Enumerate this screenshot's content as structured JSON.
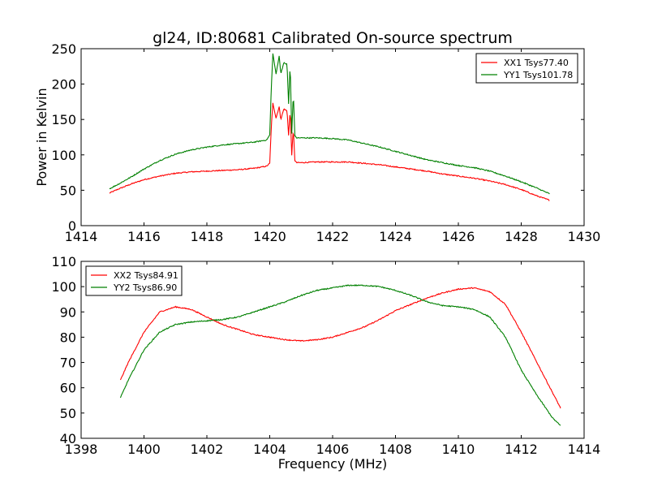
{
  "figure": {
    "title": "gl24, ID:80681 Calibrated On-source spectrum",
    "ylabel": "Power in Kelvin",
    "xlabel": "Frequency (MHz)"
  },
  "colors": {
    "xx": "#ff0000",
    "yy": "#008000",
    "axes": "#000000",
    "background": "#ffffff"
  },
  "chart_data": [
    {
      "type": "line",
      "title": "gl24, ID:80681 Calibrated On-source spectrum",
      "ylabel": "Power in Kelvin",
      "xlabel": "",
      "xlim": [
        1414,
        1430
      ],
      "ylim": [
        0,
        250
      ],
      "xticks": [
        1414,
        1416,
        1418,
        1420,
        1422,
        1424,
        1426,
        1428,
        1430
      ],
      "yticks": [
        0,
        50,
        100,
        150,
        200,
        250
      ],
      "grid": false,
      "legend_position": "top-right",
      "series": [
        {
          "name": "XX1 Tsys77.40",
          "color": "#ff0000",
          "x": [
            1414.9,
            1415.2,
            1415.6,
            1416.0,
            1416.5,
            1417.0,
            1417.5,
            1418.0,
            1418.5,
            1419.0,
            1419.5,
            1419.9,
            1420.0,
            1420.05,
            1420.1,
            1420.2,
            1420.3,
            1420.35,
            1420.45,
            1420.55,
            1420.6,
            1420.65,
            1420.7,
            1420.75,
            1420.8,
            1420.85,
            1420.9,
            1421.0,
            1421.5,
            1422.0,
            1422.5,
            1423.0,
            1423.5,
            1424.0,
            1424.5,
            1425.0,
            1425.5,
            1426.0,
            1426.5,
            1427.0,
            1427.5,
            1428.0,
            1428.5,
            1428.9
          ],
          "y": [
            46,
            52,
            59,
            65,
            70,
            74,
            76,
            77,
            78,
            79,
            81,
            84,
            88,
            140,
            173,
            152,
            168,
            150,
            165,
            162,
            128,
            163,
            100,
            137,
            92,
            89,
            89,
            89,
            90,
            90,
            90,
            88,
            86,
            83,
            80,
            77,
            73,
            70,
            67,
            63,
            58,
            51,
            42,
            36
          ]
        },
        {
          "name": "YY1 Tsys101.78",
          "color": "#008000",
          "x": [
            1414.9,
            1415.2,
            1415.6,
            1416.0,
            1416.5,
            1417.0,
            1417.5,
            1418.0,
            1418.5,
            1419.0,
            1419.5,
            1419.9,
            1420.0,
            1420.05,
            1420.1,
            1420.2,
            1420.3,
            1420.35,
            1420.45,
            1420.55,
            1420.6,
            1420.65,
            1420.7,
            1420.75,
            1420.8,
            1420.85,
            1420.9,
            1421.0,
            1421.5,
            1422.0,
            1422.5,
            1423.0,
            1423.5,
            1424.0,
            1424.5,
            1425.0,
            1425.5,
            1426.0,
            1426.5,
            1427.0,
            1427.5,
            1428.0,
            1428.5,
            1428.9
          ],
          "y": [
            52,
            59,
            69,
            80,
            92,
            101,
            107,
            111,
            114,
            116,
            118,
            121,
            128,
            195,
            243,
            214,
            240,
            215,
            230,
            228,
            172,
            229,
            130,
            187,
            127,
            124,
            124,
            124,
            124,
            123,
            121,
            116,
            111,
            105,
            99,
            93,
            89,
            85,
            82,
            77,
            70,
            62,
            53,
            45
          ]
        }
      ]
    },
    {
      "type": "line",
      "title": "",
      "xlabel": "Frequency (MHz)",
      "ylabel": "",
      "xlim": [
        1398,
        1414
      ],
      "ylim": [
        40,
        110
      ],
      "xticks": [
        1398,
        1400,
        1402,
        1404,
        1406,
        1408,
        1410,
        1412,
        1414
      ],
      "yticks": [
        40,
        50,
        60,
        70,
        80,
        90,
        100,
        110
      ],
      "grid": false,
      "legend_position": "top-left",
      "series": [
        {
          "name": "XX2 Tsys84.91",
          "color": "#ff0000",
          "x": [
            1399.25,
            1399.5,
            1400.0,
            1400.5,
            1401.0,
            1401.5,
            1402.0,
            1402.5,
            1403.0,
            1403.5,
            1404.0,
            1404.5,
            1405.0,
            1405.5,
            1406.0,
            1406.5,
            1407.0,
            1407.5,
            1408.0,
            1408.5,
            1409.0,
            1409.5,
            1410.0,
            1410.5,
            1411.0,
            1411.5,
            1412.0,
            1412.5,
            1413.0,
            1413.25
          ],
          "y": [
            63,
            70,
            82,
            90,
            92,
            91,
            88,
            85,
            83,
            81,
            80,
            79,
            78.5,
            79,
            80,
            82,
            84,
            87,
            90.5,
            93,
            95.5,
            97.5,
            99,
            99.5,
            98,
            93,
            82,
            70,
            58,
            52
          ]
        },
        {
          "name": "YY2 Tsys86.90",
          "color": "#008000",
          "x": [
            1399.25,
            1399.5,
            1400.0,
            1400.5,
            1401.0,
            1401.5,
            1402.0,
            1402.5,
            1403.0,
            1403.5,
            1404.0,
            1404.5,
            1405.0,
            1405.5,
            1406.0,
            1406.5,
            1407.0,
            1407.5,
            1408.0,
            1408.5,
            1409.0,
            1409.5,
            1410.0,
            1410.5,
            1411.0,
            1411.5,
            1412.0,
            1412.5,
            1413.0,
            1413.25
          ],
          "y": [
            56,
            63,
            75,
            82,
            85,
            86,
            86.5,
            87,
            88,
            90,
            92,
            94,
            96.5,
            98.5,
            99.5,
            100.5,
            100.5,
            100,
            98.5,
            96.5,
            94,
            92.5,
            92,
            91,
            88,
            80,
            67,
            57,
            48,
            45
          ]
        }
      ]
    }
  ]
}
